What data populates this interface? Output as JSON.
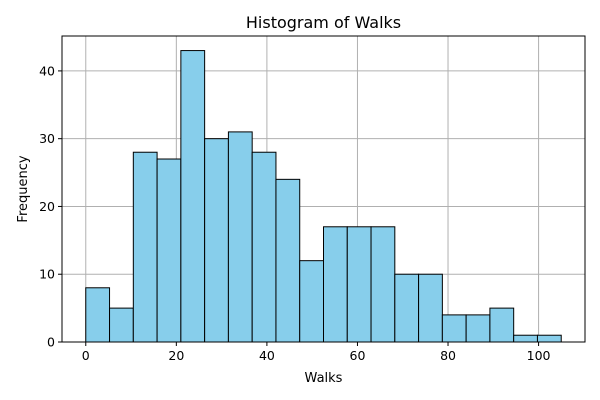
{
  "chart_data": {
    "type": "bar",
    "title": "Histogram of Walks",
    "xlabel": "Walks",
    "ylabel": "Frequency",
    "bin_edges": [
      0,
      5.25,
      10.5,
      15.75,
      21,
      26.25,
      31.5,
      36.75,
      42,
      47.25,
      52.5,
      57.75,
      63,
      68.25,
      73.5,
      78.75,
      84,
      89.25,
      94.5,
      99.75,
      105
    ],
    "values": [
      8,
      5,
      28,
      27,
      43,
      30,
      31,
      28,
      24,
      12,
      17,
      17,
      17,
      10,
      10,
      4,
      4,
      5,
      1,
      1
    ],
    "xlim": [
      -5.25,
      110.25
    ],
    "ylim": [
      0,
      45.15
    ],
    "xticks": [
      0,
      20,
      40,
      60,
      80,
      100
    ],
    "yticks": [
      0,
      10,
      20,
      30,
      40
    ],
    "grid": true,
    "colors": {
      "bar_fill": "#87ceeb",
      "bar_edge": "#000000",
      "grid": "#b0b0b0"
    }
  }
}
